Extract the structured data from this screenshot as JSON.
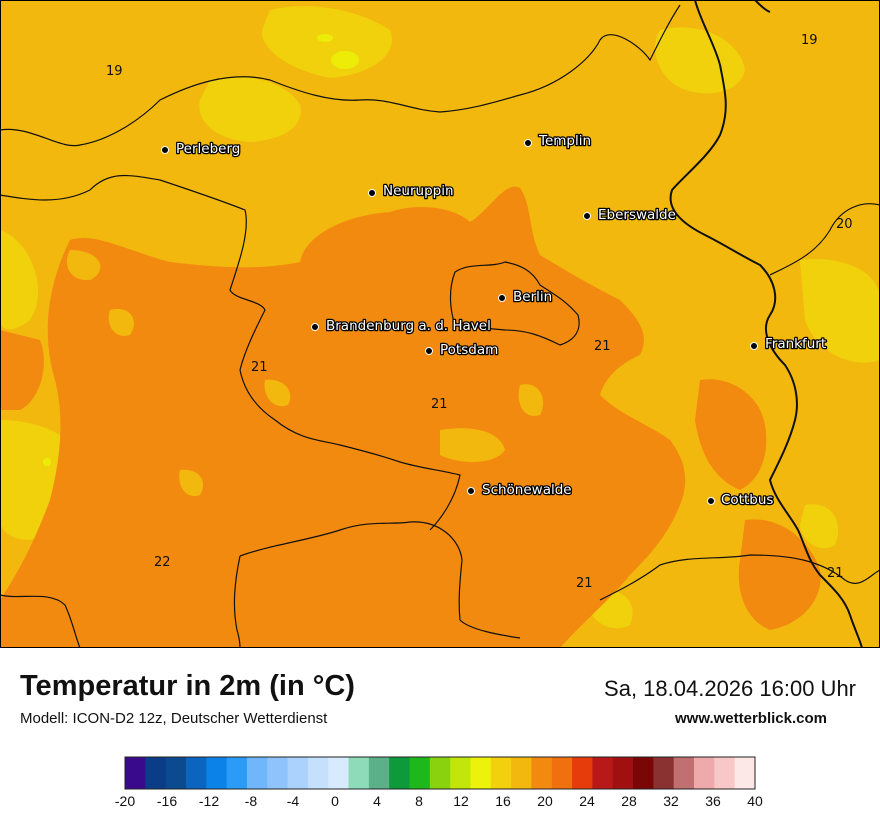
{
  "map": {
    "cities": [
      {
        "name": "Perleberg"
      },
      {
        "name": "Templin"
      },
      {
        "name": "Neuruppin"
      },
      {
        "name": "Eberswalde"
      },
      {
        "name": "Berlin"
      },
      {
        "name": "Brandenburg a. d. Havel"
      },
      {
        "name": "Potsdam"
      },
      {
        "name": "Frankfurt"
      },
      {
        "name": "Schönewalde"
      },
      {
        "name": "Cottbus"
      }
    ],
    "isotherm_labels": [
      "19",
      "19",
      "20",
      "21",
      "21",
      "21",
      "22",
      "21",
      "21"
    ],
    "colors": {
      "c18": "#f2b80e",
      "c17": "#f0d10c",
      "c16": "#ecec08",
      "c20": "#f28a10",
      "c22": "#f07010"
    }
  },
  "footer": {
    "title": "Temperatur in 2m (in °C)",
    "model": "Modell: ICON-D2 12z, Deutscher Wetterdienst",
    "valid_time": "Sa, 18.04.2026 16:00 Uhr",
    "website": "www.wetterblick.com"
  },
  "legend": {
    "colors": [
      "#3a0a8c",
      "#0b3c87",
      "#0c4a8f",
      "#0a64c0",
      "#0a82e8",
      "#2b9bf8",
      "#6fb6fb",
      "#8ec4fb",
      "#aad2fc",
      "#c4e0fd",
      "#d7eafe",
      "#8ddbb8",
      "#5bb08a",
      "#0e9a3a",
      "#1eb81a",
      "#8ad20e",
      "#c2e60a",
      "#ecf20a",
      "#f2d00e",
      "#f2b80e",
      "#f28a10",
      "#f07010",
      "#e63c0c",
      "#b81818",
      "#a01010",
      "#7a0606",
      "#8a3232",
      "#c07070",
      "#eeaaaa",
      "#f8c8c8",
      "#fde8e8"
    ],
    "ticks": [
      "-20",
      "-16",
      "-12",
      "-8",
      "-4",
      "0",
      "4",
      "8",
      "12",
      "16",
      "20",
      "24",
      "28",
      "32",
      "36",
      "40"
    ]
  }
}
